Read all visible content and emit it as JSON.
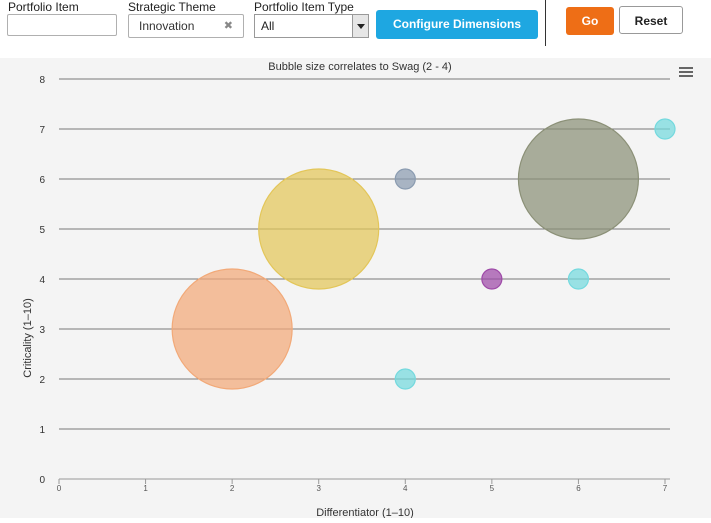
{
  "filters": {
    "portfolio_item_label": "Portfolio Item",
    "portfolio_item_value": "",
    "strategic_theme_label": "Strategic Theme",
    "strategic_theme_value": "Innovation",
    "clear_glyph": "✖",
    "portfolio_item_type_label": "Portfolio Item Type",
    "portfolio_item_type_value": "All"
  },
  "buttons": {
    "configure_dimensions": "Configure Dimensions",
    "go": "Go",
    "reset": "Reset"
  },
  "colors": {
    "go": "#ee6e16",
    "configure": "#1ea7e1"
  },
  "chart_data": {
    "type": "scatter",
    "title": "Bubble size correlates to Swag (2 - 4)",
    "xlabel": "Differentiator (1–10)",
    "ylabel": "Criticality (1–10)",
    "xlim": [
      0,
      7
    ],
    "ylim": [
      0,
      8
    ],
    "x_ticks": [
      0,
      1,
      2,
      3,
      4,
      5,
      6,
      7
    ],
    "y_ticks": [
      0,
      1,
      2,
      3,
      4,
      5,
      6,
      7,
      8
    ],
    "grid": true,
    "points": [
      {
        "x": 2,
        "y": 3,
        "size": 4,
        "color": "#f2a978"
      },
      {
        "x": 3,
        "y": 5,
        "size": 4,
        "color": "#e3c659"
      },
      {
        "x": 4,
        "y": 6,
        "size": 2,
        "color": "#8a9bb0"
      },
      {
        "x": 4,
        "y": 2,
        "size": 2,
        "color": "#74d9de"
      },
      {
        "x": 5,
        "y": 4,
        "size": 2,
        "color": "#9e4aa8"
      },
      {
        "x": 6,
        "y": 6,
        "size": 4,
        "color": "#8b9077"
      },
      {
        "x": 6,
        "y": 4,
        "size": 2,
        "color": "#74d9de"
      },
      {
        "x": 7,
        "y": 7,
        "size": 2,
        "color": "#74d9de"
      }
    ]
  }
}
